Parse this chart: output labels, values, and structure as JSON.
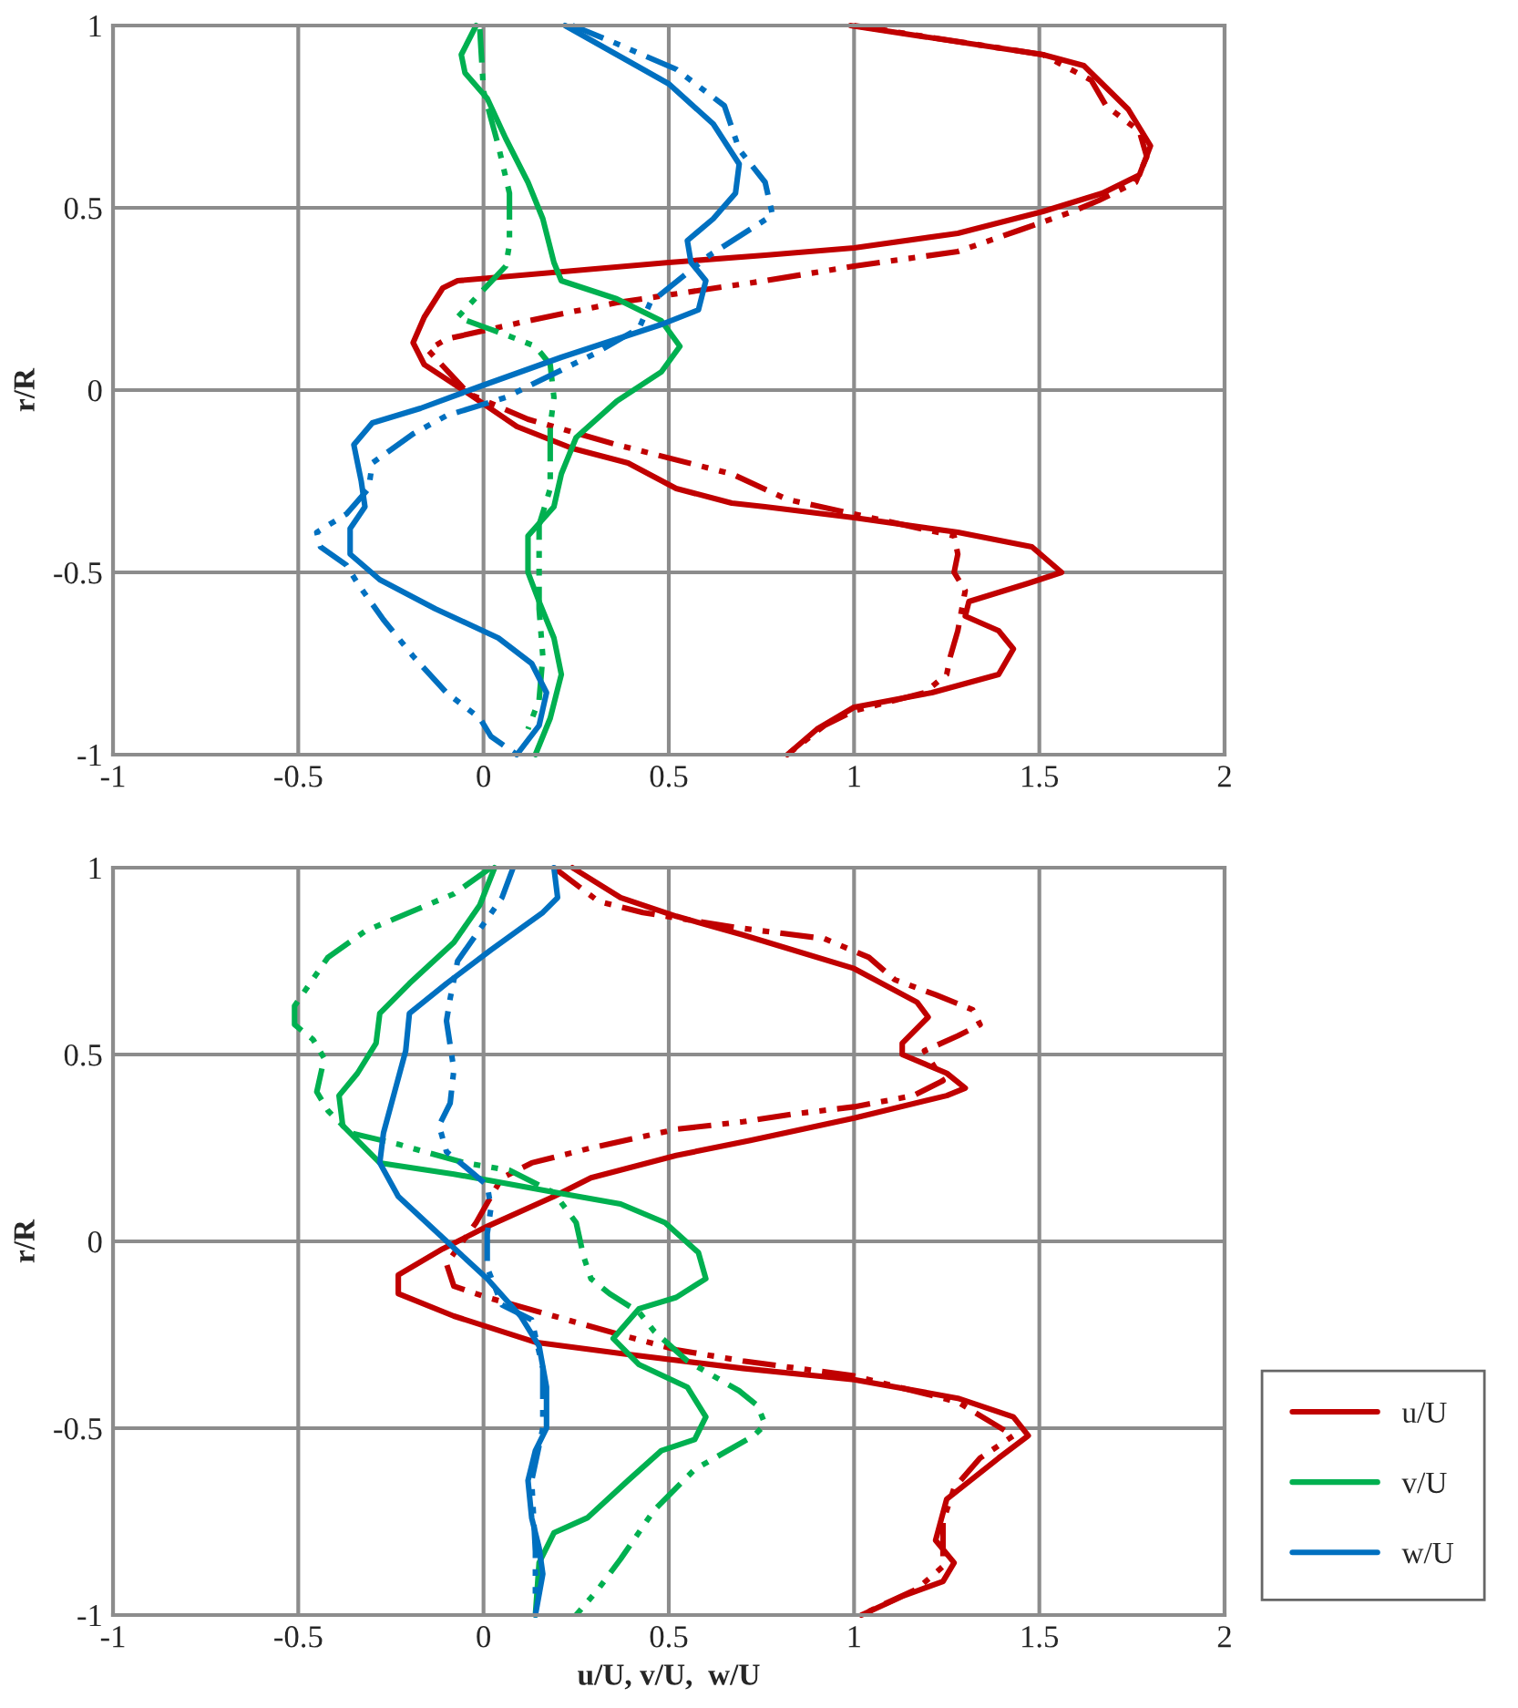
{
  "chart_data": [
    {
      "type": "line",
      "ylabel": "r/R",
      "xlim": [
        -1,
        2
      ],
      "ylim": [
        -1,
        1
      ],
      "xticks": [
        -1,
        -0.5,
        0,
        0.5,
        1,
        1.5,
        2
      ],
      "yticks": [
        -1,
        -0.5,
        0,
        0.5,
        1
      ],
      "grid": true,
      "legend": false,
      "marker": "none",
      "series": [
        {
          "color": "#c00000",
          "line_style": "solid",
          "x": [
            0.99,
            1.51,
            1.62,
            1.74,
            1.8,
            1.77,
            1.67,
            1.51,
            1.28,
            1.0,
            0.76,
            0.5,
            -0.07,
            -0.11,
            -0.16,
            -0.19,
            -0.16,
            -0.04,
            0.09,
            0.24,
            0.39,
            0.52,
            0.67,
            0.76,
            1.0,
            1.28,
            1.48,
            1.56,
            1.47,
            1.31,
            1.3,
            1.39,
            1.43,
            1.39,
            1.21,
            1.0,
            0.9,
            0.82
          ],
          "values": [
            1.0,
            0.92,
            0.89,
            0.77,
            0.67,
            0.59,
            0.54,
            0.49,
            0.43,
            0.39,
            0.37,
            0.35,
            0.3,
            0.28,
            0.2,
            0.13,
            0.07,
            -0.01,
            -0.1,
            -0.16,
            -0.2,
            -0.27,
            -0.31,
            -0.32,
            -0.35,
            -0.39,
            -0.43,
            -0.5,
            -0.53,
            -0.58,
            -0.62,
            -0.66,
            -0.71,
            -0.78,
            -0.83,
            -0.87,
            -0.93,
            -1.0
          ]
        },
        {
          "color": "#c00000",
          "line_style": "dashed",
          "x": [
            1.0,
            1.51,
            1.64,
            1.68,
            1.77,
            1.79,
            1.76,
            1.66,
            1.59,
            1.45,
            1.28,
            1.0,
            0.76,
            0.36,
            0.12,
            -0.1,
            -0.15,
            -0.04,
            0.12,
            0.36,
            0.67,
            0.82,
            1.0,
            1.27,
            1.28,
            1.27,
            1.3,
            1.28,
            1.26,
            1.25,
            1.19,
            1.0,
            0.92,
            0.82
          ],
          "values": [
            1.0,
            0.92,
            0.85,
            0.78,
            0.71,
            0.64,
            0.57,
            0.52,
            0.49,
            0.44,
            0.38,
            0.34,
            0.3,
            0.24,
            0.19,
            0.14,
            0.11,
            -0.01,
            -0.08,
            -0.15,
            -0.23,
            -0.3,
            -0.34,
            -0.4,
            -0.45,
            -0.5,
            -0.55,
            -0.66,
            -0.73,
            -0.78,
            -0.83,
            -0.88,
            -0.92,
            -1.0
          ]
        },
        {
          "color": "#00b050",
          "line_style": "solid",
          "x": [
            -0.02,
            -0.06,
            -0.05,
            0.01,
            0.06,
            0.12,
            0.16,
            0.19,
            0.21,
            0.36,
            0.48,
            0.53,
            0.48,
            0.36,
            0.25,
            0.21,
            0.19,
            0.12,
            0.12,
            0.15,
            0.19,
            0.21,
            0.18,
            0.14
          ],
          "values": [
            1.0,
            0.92,
            0.87,
            0.8,
            0.69,
            0.57,
            0.47,
            0.35,
            0.3,
            0.25,
            0.19,
            0.12,
            0.05,
            -0.03,
            -0.13,
            -0.23,
            -0.32,
            -0.4,
            -0.5,
            -0.58,
            -0.68,
            -0.78,
            -0.9,
            -1.0
          ]
        },
        {
          "color": "#00b050",
          "line_style": "dashed",
          "x": [
            -0.01,
            0.0,
            0.04,
            0.07,
            0.07,
            0.06,
            -0.07,
            0.01,
            0.09,
            0.14,
            0.18,
            0.19,
            0.18,
            0.18,
            0.15,
            0.15,
            0.15,
            0.16,
            0.15,
            0.12
          ],
          "values": [
            0.99,
            0.82,
            0.67,
            0.54,
            0.4,
            0.34,
            0.2,
            0.17,
            0.14,
            0.12,
            0.07,
            -0.02,
            -0.1,
            -0.27,
            -0.37,
            -0.53,
            -0.6,
            -0.73,
            -0.85,
            -0.93
          ]
        },
        {
          "color": "#0070c0",
          "line_style": "solid",
          "x": [
            0.22,
            0.36,
            0.5,
            0.62,
            0.69,
            0.68,
            0.62,
            0.55,
            0.56,
            0.6,
            0.58,
            0.48,
            0.21,
            -0.01,
            -0.17,
            -0.3,
            -0.35,
            -0.33,
            -0.32,
            -0.36,
            -0.36,
            -0.28,
            -0.13,
            0.04,
            0.13,
            0.17,
            0.15,
            0.09
          ],
          "values": [
            1.0,
            0.92,
            0.84,
            0.73,
            0.62,
            0.54,
            0.47,
            0.41,
            0.35,
            0.3,
            0.22,
            0.18,
            0.09,
            0.01,
            -0.05,
            -0.09,
            -0.15,
            -0.25,
            -0.32,
            -0.38,
            -0.45,
            -0.52,
            -0.6,
            -0.68,
            -0.75,
            -0.83,
            -0.92,
            -1.0
          ]
        },
        {
          "color": "#0070c0",
          "line_style": "dashed",
          "x": [
            0.24,
            0.36,
            0.52,
            0.65,
            0.69,
            0.76,
            0.78,
            0.61,
            0.45,
            0.42,
            0.3,
            0.18,
            0.06,
            -0.1,
            -0.19,
            -0.3,
            -0.31,
            -0.37,
            -0.45,
            -0.44,
            -0.37,
            -0.34,
            -0.27,
            -0.19,
            -0.1,
            -0.01,
            0.02,
            0.09
          ],
          "values": [
            1.0,
            0.95,
            0.88,
            0.78,
            0.66,
            0.57,
            0.48,
            0.37,
            0.24,
            0.17,
            0.1,
            0.04,
            -0.02,
            -0.07,
            -0.12,
            -0.2,
            -0.27,
            -0.34,
            -0.39,
            -0.43,
            -0.48,
            -0.53,
            -0.63,
            -0.73,
            -0.83,
            -0.9,
            -0.95,
            -1.0
          ]
        }
      ]
    },
    {
      "type": "line",
      "xlabel": "u/U, v/U,  w/U",
      "ylabel": "r/R",
      "xlim": [
        -1,
        2
      ],
      "ylim": [
        -1,
        1
      ],
      "xticks": [
        -1,
        -0.5,
        0,
        0.5,
        1,
        1.5,
        2
      ],
      "yticks": [
        -1,
        -0.5,
        0,
        0.5,
        1
      ],
      "grid": true,
      "legend": "bottom right",
      "marker": "none",
      "series": [
        {
          "name": "u/U",
          "color": "#c00000",
          "line_style": "solid",
          "x": [
            0.24,
            0.37,
            0.52,
            0.7,
            1.0,
            1.17,
            1.2,
            1.13,
            1.13,
            1.25,
            1.3,
            1.25,
            1.0,
            0.72,
            0.52,
            0.29,
            0.19,
            0.01,
            -0.11,
            -0.23,
            -0.23,
            -0.08,
            0.14,
            0.37,
            0.7,
            1.0,
            1.28,
            1.43,
            1.47,
            1.39,
            1.25,
            1.22,
            1.27,
            1.24,
            1.13,
            1.02
          ],
          "values": [
            1.0,
            0.92,
            0.87,
            0.82,
            0.73,
            0.64,
            0.6,
            0.53,
            0.5,
            0.45,
            0.41,
            0.39,
            0.33,
            0.27,
            0.23,
            0.17,
            0.12,
            0.04,
            -0.02,
            -0.09,
            -0.14,
            -0.2,
            -0.27,
            -0.3,
            -0.34,
            -0.37,
            -0.42,
            -0.47,
            -0.52,
            -0.58,
            -0.69,
            -0.8,
            -0.86,
            -0.91,
            -0.95,
            -1.0
          ]
        },
        {
          "color": "#c00000",
          "line_style": "dashed",
          "x": [
            0.19,
            0.31,
            0.43,
            0.68,
            0.92,
            1.04,
            1.11,
            1.22,
            1.32,
            1.34,
            1.28,
            1.19,
            1.24,
            1.16,
            1.0,
            0.83,
            0.7,
            0.52,
            0.29,
            0.13,
            0.05,
            0.02,
            -0.02,
            -0.1,
            -0.08,
            0.01,
            0.19,
            0.37,
            0.52,
            0.7,
            1.0,
            1.28,
            1.43,
            1.34,
            1.27,
            1.24,
            1.24,
            1.17,
            1.04
          ],
          "values": [
            1.0,
            0.91,
            0.88,
            0.84,
            0.81,
            0.76,
            0.7,
            0.66,
            0.62,
            0.58,
            0.55,
            0.51,
            0.43,
            0.39,
            0.36,
            0.34,
            0.32,
            0.3,
            0.25,
            0.21,
            0.17,
            0.12,
            0.05,
            -0.06,
            -0.12,
            -0.15,
            -0.2,
            -0.25,
            -0.29,
            -0.32,
            -0.36,
            -0.43,
            -0.52,
            -0.58,
            -0.66,
            -0.75,
            -0.87,
            -0.93,
            -0.99
          ]
        },
        {
          "name": "v/U",
          "color": "#00b050",
          "line_style": "solid",
          "x": [
            0.03,
            -0.01,
            -0.08,
            -0.2,
            -0.28,
            -0.29,
            -0.34,
            -0.39,
            -0.38,
            -0.28,
            -0.08,
            0.2,
            0.37,
            0.49,
            0.58,
            0.6,
            0.52,
            0.42,
            0.35,
            0.42,
            0.55,
            0.6,
            0.57,
            0.48,
            0.39,
            0.28,
            0.19,
            0.15,
            0.14
          ],
          "values": [
            1.0,
            0.9,
            0.8,
            0.69,
            0.61,
            0.53,
            0.45,
            0.39,
            0.31,
            0.21,
            0.18,
            0.13,
            0.1,
            0.05,
            -0.03,
            -0.1,
            -0.15,
            -0.18,
            -0.26,
            -0.33,
            -0.39,
            -0.47,
            -0.53,
            -0.56,
            -0.64,
            -0.74,
            -0.78,
            -0.86,
            -1.0
          ]
        },
        {
          "color": "#00b050",
          "line_style": "dashed",
          "x": [
            0.02,
            -0.08,
            -0.32,
            -0.42,
            -0.51,
            -0.51,
            -0.46,
            -0.43,
            -0.45,
            -0.42,
            -0.36,
            -0.23,
            -0.16,
            -0.05,
            0.07,
            0.19,
            0.25,
            0.27,
            0.29,
            0.34,
            0.42,
            0.46,
            0.55,
            0.69,
            0.74,
            0.76,
            0.73,
            0.57,
            0.46,
            0.37,
            0.31,
            0.25
          ],
          "values": [
            1.0,
            0.93,
            0.83,
            0.76,
            0.63,
            0.58,
            0.54,
            0.49,
            0.4,
            0.35,
            0.29,
            0.26,
            0.24,
            0.21,
            0.19,
            0.13,
            0.05,
            -0.04,
            -0.1,
            -0.14,
            -0.19,
            -0.24,
            -0.32,
            -0.4,
            -0.44,
            -0.49,
            -0.52,
            -0.61,
            -0.72,
            -0.85,
            -0.93,
            -1.0
          ]
        },
        {
          "name": "w/U",
          "color": "#0070c0",
          "line_style": "solid",
          "x": [
            0.19,
            0.2,
            0.16,
            0.02,
            -0.1,
            -0.2,
            -0.21,
            -0.24,
            -0.27,
            -0.28,
            -0.23,
            -0.11,
            0.01,
            0.1,
            0.15,
            0.17,
            0.17,
            0.14,
            0.12,
            0.13,
            0.15,
            0.16,
            0.14
          ],
          "values": [
            1.0,
            0.92,
            0.88,
            0.78,
            0.69,
            0.61,
            0.51,
            0.4,
            0.29,
            0.21,
            0.12,
            0.01,
            -0.1,
            -0.2,
            -0.28,
            -0.39,
            -0.5,
            -0.56,
            -0.64,
            -0.74,
            -0.82,
            -0.89,
            -1.0
          ]
        },
        {
          "color": "#0070c0",
          "line_style": "dashed",
          "x": [
            0.08,
            0.05,
            -0.07,
            -0.09,
            -0.1,
            -0.08,
            -0.09,
            -0.12,
            -0.1,
            -0.05,
            0.01,
            0.02,
            0.01,
            0.01,
            0.05,
            0.13,
            0.16,
            0.16,
            0.13,
            0.14,
            0.14
          ],
          "values": [
            1.0,
            0.92,
            0.75,
            0.65,
            0.59,
            0.46,
            0.37,
            0.31,
            0.24,
            0.2,
            0.15,
            0.09,
            0.02,
            -0.07,
            -0.17,
            -0.21,
            -0.34,
            -0.5,
            -0.64,
            -0.83,
            -0.96
          ]
        }
      ]
    }
  ]
}
